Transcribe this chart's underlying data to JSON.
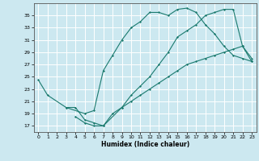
{
  "xlabel": "Humidex (Indice chaleur)",
  "bg_color": "#cce8f0",
  "line_color": "#1a7a6e",
  "grid_color": "#ffffff",
  "xlim": [
    -0.5,
    23.5
  ],
  "ylim": [
    16.0,
    37.0
  ],
  "yticks": [
    17,
    19,
    21,
    23,
    25,
    27,
    29,
    31,
    33,
    35
  ],
  "xticks": [
    0,
    1,
    2,
    3,
    4,
    5,
    6,
    7,
    8,
    9,
    10,
    11,
    12,
    13,
    14,
    15,
    16,
    17,
    18,
    19,
    20,
    21,
    22,
    23
  ],
  "line1_x": [
    0,
    1,
    3,
    5,
    6,
    7,
    8,
    9,
    10,
    11,
    12,
    13,
    14,
    15,
    16,
    17,
    18,
    19,
    20,
    21,
    22,
    23
  ],
  "line1_y": [
    24.5,
    22.0,
    20.0,
    19.0,
    19.5,
    26.0,
    28.5,
    31.0,
    33.0,
    34.0,
    35.5,
    35.5,
    35.0,
    36.0,
    36.2,
    35.5,
    33.5,
    32.0,
    30.0,
    28.5,
    28.0,
    27.5
  ],
  "line2_x": [
    3,
    4,
    5,
    6,
    7,
    8,
    9,
    10,
    11,
    12,
    13,
    14,
    15,
    16,
    17,
    18,
    19,
    20,
    21,
    22,
    23
  ],
  "line2_y": [
    20.0,
    20.0,
    18.0,
    17.5,
    17.0,
    19.0,
    20.0,
    21.0,
    22.0,
    23.0,
    24.0,
    25.0,
    26.0,
    27.0,
    27.5,
    28.0,
    28.5,
    29.0,
    29.5,
    30.0,
    27.5
  ],
  "line3_x": [
    4,
    5,
    6,
    7,
    9,
    10,
    11,
    12,
    13,
    14,
    15,
    16,
    17,
    18,
    19,
    20,
    21,
    22,
    23
  ],
  "line3_y": [
    18.5,
    17.5,
    17.0,
    17.0,
    20.0,
    22.0,
    23.5,
    25.0,
    27.0,
    29.0,
    31.5,
    32.5,
    33.5,
    35.0,
    35.5,
    36.0,
    36.0,
    30.0,
    28.0
  ]
}
